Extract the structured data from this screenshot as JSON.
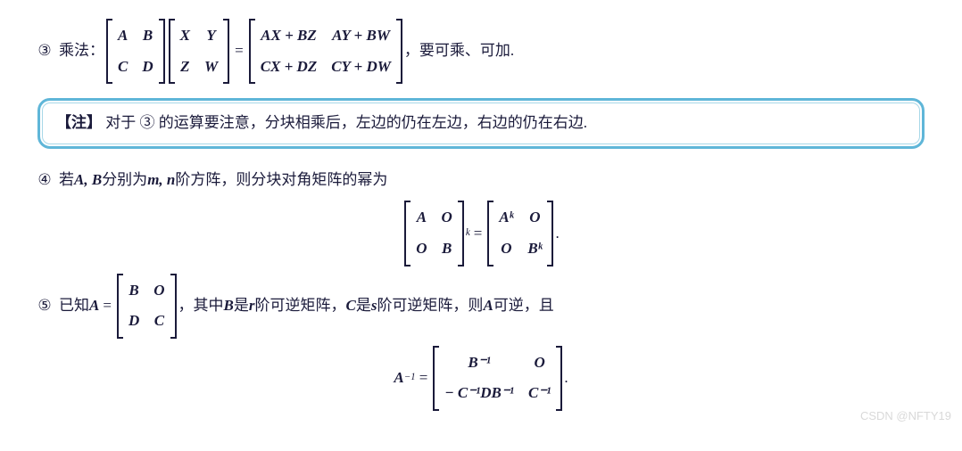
{
  "item3": {
    "circled": "③",
    "label": "乘法：",
    "m1": [
      "A",
      "B",
      "C",
      "D"
    ],
    "m2": [
      "X",
      "Y",
      "Z",
      "W"
    ],
    "eq": "=",
    "m3": [
      "AX + BZ",
      "AY + BW",
      "CX + DZ",
      "CY + DW"
    ],
    "tail": "，要可乘、可加."
  },
  "note": {
    "tag": "【注】",
    "text": "对于 ③ 的运算要注意，分块相乘后，左边的仍在左边，右边的仍在右边."
  },
  "item4": {
    "circled": "④",
    "pre": "若 ",
    "ab": "A, B",
    "mid1": " 分别为 ",
    "mn": "m, n",
    "mid2": " 阶方阵，则分块对角矩阵的幂为",
    "mL": [
      "A",
      "O",
      "O",
      "B"
    ],
    "powL": "k",
    "eq": "=",
    "mR": [
      "Aᵏ",
      "O",
      "O",
      "Bᵏ"
    ],
    "period": "."
  },
  "item5": {
    "circled": "⑤",
    "pre": "已知 ",
    "A": "A",
    "eq1": " = ",
    "m1": [
      "B",
      "O",
      "D",
      "C"
    ],
    "mid1": "，其中 ",
    "B": "B",
    "mid2": " 是 ",
    "r": "r",
    "mid3": " 阶可逆矩阵，",
    "C": "C",
    "mid4": " 是 ",
    "s": "s",
    "mid5": " 阶可逆矩阵，则 ",
    "A2": "A",
    "mid6": " 可逆，且",
    "lhs": "A",
    "lhspow": "−1",
    "eq2": "=",
    "m2": [
      "B⁻¹",
      "O",
      "− C⁻¹DB⁻¹",
      "C⁻¹"
    ],
    "period": "."
  },
  "watermark": "CSDN @NFTY19"
}
